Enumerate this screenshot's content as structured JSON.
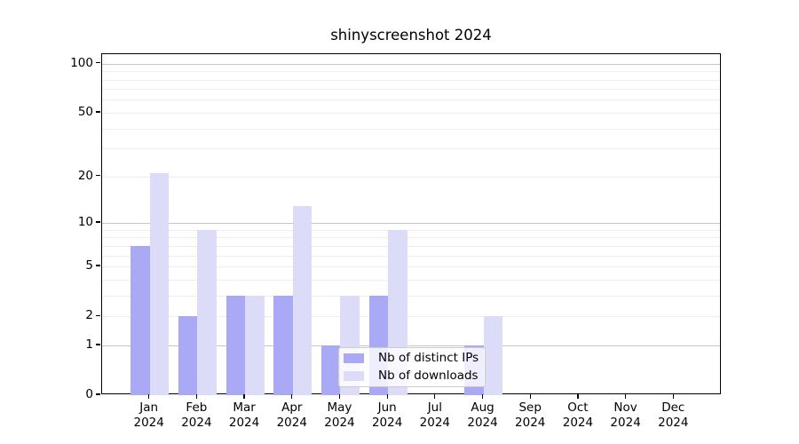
{
  "chart_data": {
    "type": "bar",
    "title": "shinyscreenshot 2024",
    "categories": [
      "Jan",
      "Feb",
      "Mar",
      "Apr",
      "May",
      "Jun",
      "Jul",
      "Aug",
      "Sep",
      "Oct",
      "Nov",
      "Dec"
    ],
    "x_tick_year": "2024",
    "series": [
      {
        "name": "Nb of distinct IPs",
        "color": "#a9a9f5",
        "values": [
          7,
          2,
          3,
          3,
          1,
          3,
          0,
          1,
          0,
          0,
          0,
          0
        ]
      },
      {
        "name": "Nb of downloads",
        "color": "#dcdcf9",
        "values": [
          21,
          9,
          3,
          13,
          3,
          9,
          0,
          2,
          0,
          0,
          0,
          0
        ]
      }
    ],
    "y_scale": "log10(1+x)",
    "ylim": [
      0,
      100
    ],
    "y_ticks": [
      0,
      1,
      2,
      5,
      10,
      20,
      50,
      100
    ],
    "grid": {
      "on": true,
      "major_values": [
        1,
        10,
        100
      ],
      "minor_values": [
        2,
        3,
        4,
        5,
        6,
        7,
        8,
        9,
        20,
        30,
        40,
        50,
        60,
        70,
        80,
        90
      ],
      "major_color": "#c6c6c6",
      "minor_color": "#ededed"
    },
    "legend": {
      "position": "lower center"
    },
    "axis_color": "#000000",
    "background_color": "#ffffff"
  }
}
